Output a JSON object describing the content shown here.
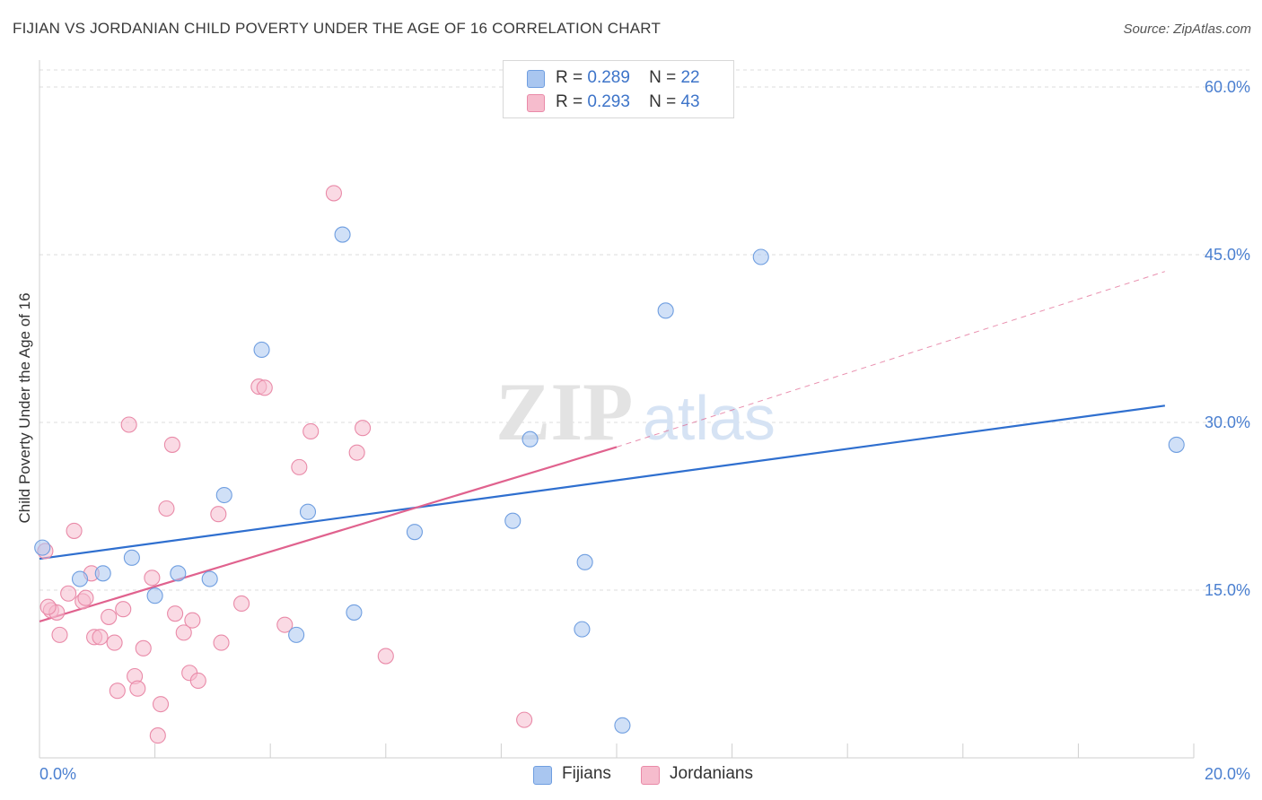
{
  "title": "FIJIAN VS JORDANIAN CHILD POVERTY UNDER THE AGE OF 16 CORRELATION CHART",
  "source": "Source: ZipAtlas.com",
  "watermark": {
    "zip": "ZIP",
    "atlas": "atlas"
  },
  "legend": {
    "rows": [
      {
        "r_label": "R =",
        "r_value": "0.289",
        "n_label": "N =",
        "n_value": "22",
        "color": "#a9c6f0"
      },
      {
        "r_label": "R =",
        "r_value": "0.293",
        "n_label": "N =",
        "n_value": "43",
        "color": "#f6bccd"
      }
    ]
  },
  "bottom_legend": [
    {
      "label": "Fijians",
      "color": "#a9c6f0"
    },
    {
      "label": "Jordanians",
      "color": "#f6bccd"
    }
  ],
  "chart_data": {
    "type": "scatter",
    "title": "FIJIAN VS JORDANIAN CHILD POVERTY UNDER THE AGE OF 16 CORRELATION CHART",
    "ylabel": "Child Poverty Under the Age of 16",
    "xlabel": "",
    "xlim": [
      0,
      20
    ],
    "ylim": [
      0,
      60
    ],
    "x_ticks": [
      "0.0%",
      "20.0%"
    ],
    "y_ticks": [
      {
        "value": 15,
        "label": "15.0%"
      },
      {
        "value": 30,
        "label": "30.0%"
      },
      {
        "value": 45,
        "label": "45.0%"
      },
      {
        "value": 60,
        "label": "60.0%"
      }
    ],
    "grid": true,
    "series": [
      {
        "name": "Fijians",
        "color": "#a9c6f0",
        "stroke": "#6f9ee0",
        "trend_color": "#2f6fcf",
        "trend": {
          "x1": 0,
          "y1": 17.8,
          "x2": 19.5,
          "y2": 31.5
        },
        "points": [
          [
            0.05,
            18.8
          ],
          [
            1.1,
            16.5
          ],
          [
            0.7,
            16.0
          ],
          [
            1.6,
            17.9
          ],
          [
            2.0,
            14.5
          ],
          [
            2.4,
            16.5
          ],
          [
            2.95,
            16.0
          ],
          [
            3.2,
            23.5
          ],
          [
            3.85,
            36.5
          ],
          [
            4.45,
            11.0
          ],
          [
            4.65,
            22.0
          ],
          [
            5.25,
            46.8
          ],
          [
            5.45,
            13.0
          ],
          [
            6.5,
            20.2
          ],
          [
            8.2,
            21.2
          ],
          [
            8.5,
            28.5
          ],
          [
            9.45,
            17.5
          ],
          [
            9.4,
            11.5
          ],
          [
            10.1,
            2.9
          ],
          [
            10.85,
            40.0
          ],
          [
            12.5,
            44.8
          ],
          [
            19.7,
            28.0
          ]
        ]
      },
      {
        "name": "Jordanians",
        "color": "#f6bccd",
        "stroke": "#e98aa8",
        "trend_color": "#e0628e",
        "trend": {
          "x1": 0,
          "y1": 12.2,
          "x2": 10.0,
          "y2": 27.8
        },
        "trend_extension": {
          "x1": 10.0,
          "y1": 27.8,
          "x2": 19.5,
          "y2": 43.5
        },
        "points": [
          [
            0.1,
            18.5
          ],
          [
            0.2,
            13.2
          ],
          [
            0.3,
            13.0
          ],
          [
            0.35,
            11.0
          ],
          [
            0.6,
            20.3
          ],
          [
            0.5,
            14.7
          ],
          [
            0.75,
            14.0
          ],
          [
            0.8,
            14.3
          ],
          [
            0.9,
            16.5
          ],
          [
            0.95,
            10.8
          ],
          [
            1.05,
            10.8
          ],
          [
            1.2,
            12.6
          ],
          [
            1.3,
            10.3
          ],
          [
            1.35,
            6.0
          ],
          [
            1.45,
            13.3
          ],
          [
            1.55,
            29.8
          ],
          [
            1.65,
            7.3
          ],
          [
            1.7,
            6.2
          ],
          [
            1.8,
            9.8
          ],
          [
            1.95,
            16.1
          ],
          [
            2.05,
            2.0
          ],
          [
            2.1,
            4.8
          ],
          [
            2.2,
            22.3
          ],
          [
            2.3,
            28.0
          ],
          [
            2.35,
            12.9
          ],
          [
            2.5,
            11.2
          ],
          [
            2.6,
            7.6
          ],
          [
            2.65,
            12.3
          ],
          [
            2.75,
            6.9
          ],
          [
            3.1,
            21.8
          ],
          [
            3.15,
            10.3
          ],
          [
            3.5,
            13.8
          ],
          [
            3.8,
            33.2
          ],
          [
            3.9,
            33.1
          ],
          [
            4.25,
            11.9
          ],
          [
            4.5,
            26.0
          ],
          [
            4.7,
            29.2
          ],
          [
            5.1,
            50.5
          ],
          [
            5.5,
            27.3
          ],
          [
            5.6,
            29.5
          ],
          [
            6.0,
            9.1
          ],
          [
            8.4,
            3.4
          ],
          [
            0.15,
            13.5
          ]
        ]
      }
    ]
  }
}
